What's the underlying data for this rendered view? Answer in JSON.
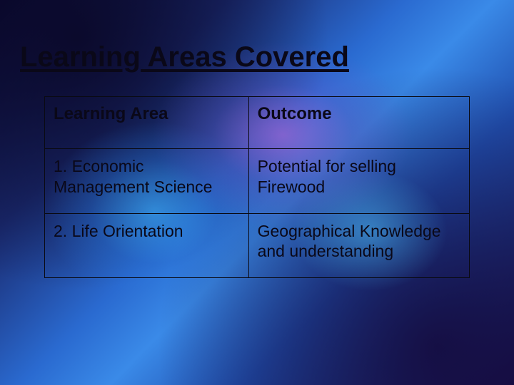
{
  "slide": {
    "title": "Learning Areas Covered",
    "table": {
      "type": "table",
      "columns": [
        {
          "label": "Learning Area",
          "width_pct": 48,
          "align": "left"
        },
        {
          "label": "Outcome",
          "width_pct": 52,
          "align": "left"
        }
      ],
      "rows": [
        [
          "1. Economic Management Science",
          "Potential for selling Firewood"
        ],
        [
          "2. Life Orientation",
          "Geographical Knowledge and understanding"
        ]
      ],
      "border_color": "#0a0a12",
      "header_fontsize": 24,
      "header_fontweight": 700,
      "cell_fontsize": 23,
      "cell_fontweight": 400,
      "text_color": "#0a0818"
    },
    "title_style": {
      "fontsize": 40,
      "fontweight": 700,
      "color": "#0a0818",
      "underline": true
    },
    "background": {
      "description": "abstract blue-purple nebula gradient",
      "colors": [
        "#0a0830",
        "#1a2a70",
        "#2a6ad0",
        "#3a8ae8",
        "#c864dc",
        "#18104a"
      ]
    }
  }
}
